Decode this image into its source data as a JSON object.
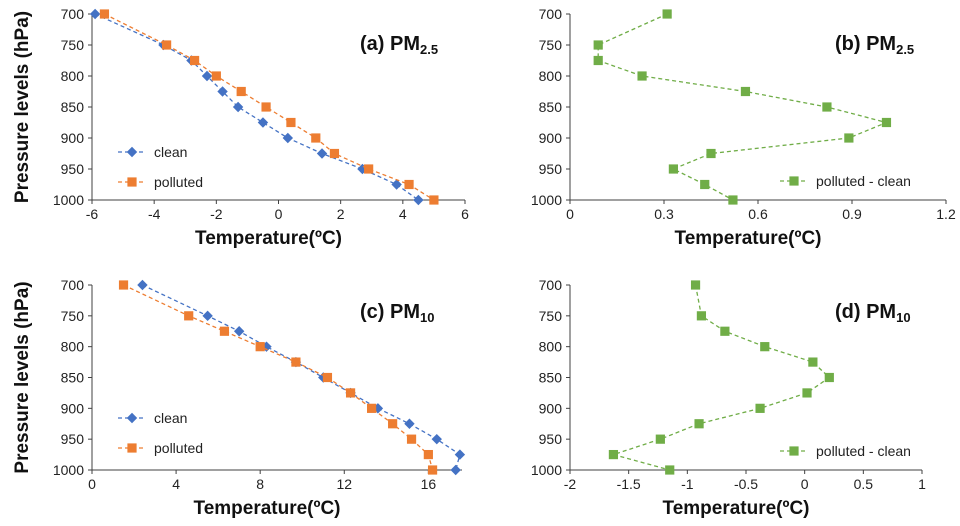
{
  "colors": {
    "clean": "#4472C4",
    "polluted": "#ED7D31",
    "diff": "#70AD47",
    "axis": "#404040"
  },
  "chart_data": [
    {
      "type": "line",
      "panel_label": "(a) PM",
      "panel_sub": "2.5",
      "xlabel": "Temperature(ºC)",
      "ylabel": "Pressure levels (hPa)",
      "xlim": [
        -6,
        6
      ],
      "ylim": [
        700,
        1000
      ],
      "y_inverted": true,
      "x_ticks": [
        -6,
        -4,
        -2,
        0,
        2,
        4,
        6
      ],
      "x_tick_labels": [
        "-6",
        "-4",
        "-2",
        "0",
        "2",
        "4",
        "6"
      ],
      "y_ticks": [
        700,
        750,
        800,
        850,
        900,
        950,
        1000
      ],
      "y_tick_labels": [
        "700",
        "750",
        "800",
        "850",
        "900",
        "950",
        "1000"
      ],
      "legend": "lower-left",
      "series": [
        {
          "name": "clean",
          "marker": "diamond",
          "color": "#4472C4",
          "points": [
            [
              -5.9,
              700
            ],
            [
              -3.7,
              750
            ],
            [
              -2.8,
              775
            ],
            [
              -2.3,
              800
            ],
            [
              -1.8,
              825
            ],
            [
              -1.3,
              850
            ],
            [
              -0.5,
              875
            ],
            [
              0.3,
              900
            ],
            [
              1.4,
              925
            ],
            [
              2.7,
              950
            ],
            [
              3.8,
              975
            ],
            [
              4.5,
              1000
            ]
          ]
        },
        {
          "name": "polluted",
          "marker": "square",
          "color": "#ED7D31",
          "points": [
            [
              -5.6,
              700
            ],
            [
              -3.6,
              750
            ],
            [
              -2.7,
              775
            ],
            [
              -2.0,
              800
            ],
            [
              -1.2,
              825
            ],
            [
              -0.4,
              850
            ],
            [
              0.4,
              875
            ],
            [
              1.2,
              900
            ],
            [
              1.8,
              925
            ],
            [
              2.9,
              950
            ],
            [
              4.2,
              975
            ],
            [
              5.0,
              1000
            ]
          ]
        }
      ]
    },
    {
      "type": "line",
      "panel_label": "(b) PM",
      "panel_sub": "2.5",
      "xlabel": "Temperature(ºC)",
      "ylabel": "",
      "xlim": [
        0,
        1.2
      ],
      "ylim": [
        700,
        1000
      ],
      "y_inverted": true,
      "x_ticks": [
        0,
        0.3,
        0.6,
        0.9,
        1.2
      ],
      "x_tick_labels": [
        "0",
        "0.3",
        "0.6",
        "0.9",
        "1.2"
      ],
      "y_ticks": [
        700,
        750,
        800,
        850,
        900,
        950,
        1000
      ],
      "y_tick_labels": [
        "700",
        "750",
        "800",
        "850",
        "900",
        "950",
        "1000"
      ],
      "legend": "lower-right",
      "series": [
        {
          "name": "polluted - clean",
          "marker": "square",
          "color": "#70AD47",
          "points": [
            [
              0.31,
              700
            ],
            [
              0.09,
              750
            ],
            [
              0.09,
              775
            ],
            [
              0.23,
              800
            ],
            [
              0.56,
              825
            ],
            [
              0.82,
              850
            ],
            [
              1.01,
              875
            ],
            [
              0.89,
              900
            ],
            [
              0.45,
              925
            ],
            [
              0.33,
              950
            ],
            [
              0.43,
              975
            ],
            [
              0.52,
              1000
            ]
          ]
        }
      ]
    },
    {
      "type": "line",
      "panel_label": "(c) PM",
      "panel_sub": "10",
      "xlabel": "Temperature(ºC)",
      "ylabel": "Pressure levels (hPa)",
      "xlim": [
        0,
        17.6
      ],
      "ylim": [
        700,
        1000
      ],
      "y_inverted": true,
      "x_ticks": [
        0,
        4,
        8,
        12,
        16
      ],
      "x_tick_labels": [
        "0",
        "4",
        "8",
        "12",
        "16"
      ],
      "y_ticks": [
        700,
        750,
        800,
        850,
        900,
        950,
        1000
      ],
      "y_tick_labels": [
        "700",
        "750",
        "800",
        "850",
        "900",
        "950",
        "1000"
      ],
      "legend": "lower-left",
      "series": [
        {
          "name": "clean",
          "marker": "diamond",
          "color": "#4472C4",
          "points": [
            [
              2.4,
              700
            ],
            [
              5.5,
              750
            ],
            [
              7.0,
              775
            ],
            [
              8.3,
              800
            ],
            [
              9.7,
              825
            ],
            [
              11.0,
              850
            ],
            [
              12.3,
              875
            ],
            [
              13.6,
              900
            ],
            [
              15.1,
              925
            ],
            [
              16.4,
              950
            ],
            [
              17.5,
              975
            ],
            [
              17.3,
              1000
            ]
          ]
        },
        {
          "name": "polluted",
          "marker": "square",
          "color": "#ED7D31",
          "points": [
            [
              1.5,
              700
            ],
            [
              4.6,
              750
            ],
            [
              6.3,
              775
            ],
            [
              8.0,
              800
            ],
            [
              9.7,
              825
            ],
            [
              11.2,
              850
            ],
            [
              12.3,
              875
            ],
            [
              13.3,
              900
            ],
            [
              14.3,
              925
            ],
            [
              15.2,
              950
            ],
            [
              16.0,
              975
            ],
            [
              16.2,
              1000
            ]
          ]
        }
      ]
    },
    {
      "type": "line",
      "panel_label": "(d) PM",
      "panel_sub": "10",
      "xlabel": "Temperature(ºC)",
      "ylabel": "",
      "xlim": [
        -2,
        1
      ],
      "ylim": [
        700,
        1000
      ],
      "y_inverted": true,
      "x_ticks": [
        -2,
        -1.5,
        -1,
        -0.5,
        0,
        0.5,
        1
      ],
      "x_tick_labels": [
        "-2",
        "-1.5",
        "-1",
        "-0.5",
        "0",
        "0.5",
        "1"
      ],
      "y_ticks": [
        700,
        750,
        800,
        850,
        900,
        950,
        1000
      ],
      "y_tick_labels": [
        "700",
        "750",
        "800",
        "850",
        "900",
        "950",
        "1000"
      ],
      "legend": "lower-right",
      "series": [
        {
          "name": "polluted - clean",
          "marker": "square",
          "color": "#70AD47",
          "points": [
            [
              -0.93,
              700
            ],
            [
              -0.88,
              750
            ],
            [
              -0.68,
              775
            ],
            [
              -0.34,
              800
            ],
            [
              0.07,
              825
            ],
            [
              0.21,
              850
            ],
            [
              0.02,
              875
            ],
            [
              -0.38,
              900
            ],
            [
              -0.9,
              925
            ],
            [
              -1.23,
              950
            ],
            [
              -1.63,
              975
            ],
            [
              -1.15,
              1000
            ]
          ]
        }
      ]
    }
  ]
}
